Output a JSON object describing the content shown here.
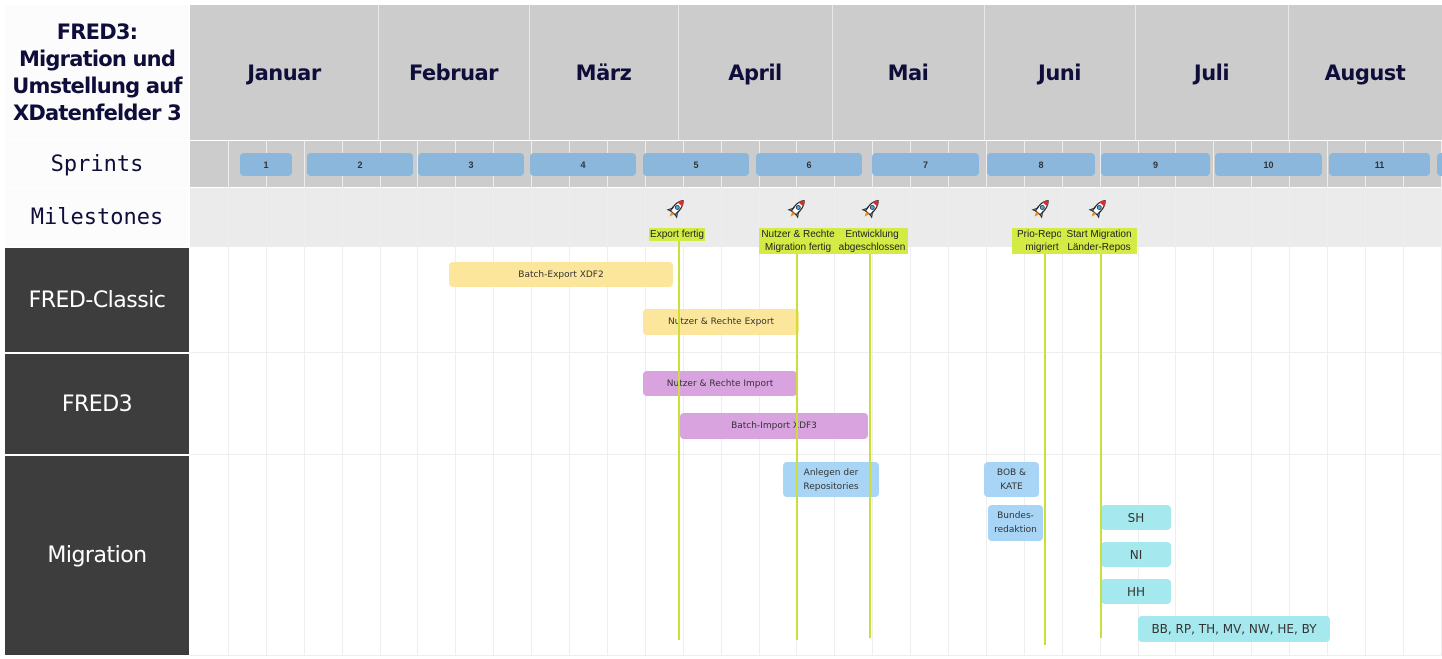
{
  "title": "FRED3: Migration und Umstellung auf XDatenfelder 3",
  "months": [
    "Januar",
    "Februar",
    "März",
    "April",
    "Mai",
    "Juni",
    "Juli",
    "August"
  ],
  "row_labels": {
    "sprints": "Sprints",
    "milestones": "Milestones",
    "fred_classic": "FRED-Classic",
    "fred3": "FRED3",
    "migration": "Migration"
  },
  "sprints": [
    "1",
    "2",
    "3",
    "4",
    "5",
    "6",
    "7",
    "8",
    "9",
    "10",
    "11"
  ],
  "milestones": [
    {
      "label": "Export fertig",
      "icon": "rocket-icon"
    },
    {
      "label": "Nutzer & Rechte Migration fertig",
      "icon": "rocket-icon"
    },
    {
      "label": "Entwicklung abgeschlossen",
      "icon": "rocket-icon"
    },
    {
      "label": "Prio-Repos migriert",
      "icon": "rocket-icon"
    },
    {
      "label": "Start Migration Länder-Repos",
      "icon": "rocket-icon"
    }
  ],
  "tasks": [
    {
      "label": "Batch-Export XDF2",
      "lane": "FRED-Classic",
      "color": "#fce69c"
    },
    {
      "label": "Nutzer & Rechte Export",
      "lane": "FRED-Classic",
      "color": "#fce69c"
    },
    {
      "label": "Nutzer & Rechte Import",
      "lane": "FRED3",
      "color": "#d9a3e0"
    },
    {
      "label": "Batch-Import XDF3",
      "lane": "FRED3",
      "color": "#d9a3e0"
    },
    {
      "label": "Anlegen der Repositories",
      "lane": "Migration",
      "color": "#a8d4f5"
    },
    {
      "label": "BOB & KATE",
      "lane": "Migration",
      "color": "#a8d4f5"
    },
    {
      "label": "Bundes-redaktion",
      "lane": "Migration",
      "color": "#a8d4f5"
    },
    {
      "label": "SH",
      "lane": "Migration",
      "color": "#a5e9ee"
    },
    {
      "label": "NI",
      "lane": "Migration",
      "color": "#a5e9ee"
    },
    {
      "label": "HH",
      "lane": "Migration",
      "color": "#a5e9ee"
    },
    {
      "label": "BB, RP, TH, MV, NW, HE, BY",
      "lane": "Migration",
      "color": "#a5e9ee"
    }
  ],
  "colors": {
    "sprint": "#8bb7dc",
    "milestone_label": "#d4ea45",
    "lane_dark": "#3d3d3d",
    "header": "#cccccc"
  }
}
